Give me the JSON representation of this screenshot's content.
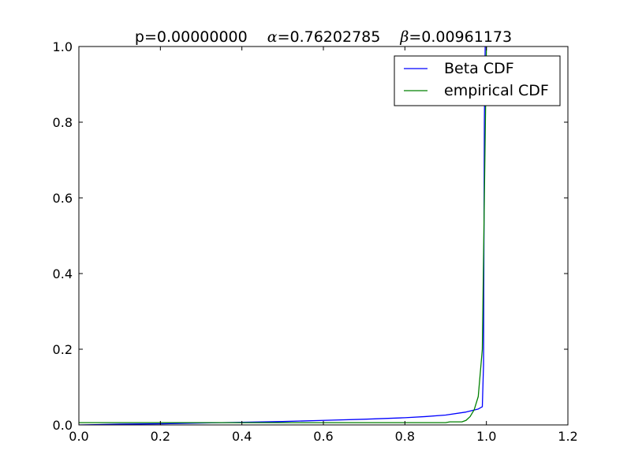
{
  "chart_data": {
    "type": "line",
    "title": {
      "p_label": "p=0.00000000",
      "alpha_symbol": "α",
      "alpha_value": "=0.76202785",
      "beta_symbol": "β",
      "beta_value": "=0.00961173"
    },
    "xlabel": "",
    "ylabel": "",
    "xlim": [
      0.0,
      1.2
    ],
    "ylim": [
      0.0,
      1.0
    ],
    "xticks": [
      0.0,
      0.2,
      0.4,
      0.6,
      0.8,
      1.0,
      1.2
    ],
    "xtick_labels": [
      "0.0",
      "0.2",
      "0.4",
      "0.6",
      "0.8",
      "1.0",
      "1.2"
    ],
    "yticks": [
      0.0,
      0.2,
      0.4,
      0.6,
      0.8,
      1.0
    ],
    "ytick_labels": [
      "0.0",
      "0.2",
      "0.4",
      "0.6",
      "0.8",
      "1.0"
    ],
    "grid": false,
    "legend_placement": "top-right",
    "series": [
      {
        "name": "Beta CDF",
        "color": "#0000ff",
        "points": [
          [
            0.0,
            0.0
          ],
          [
            0.1,
            0.002
          ],
          [
            0.2,
            0.003
          ],
          [
            0.3,
            0.005
          ],
          [
            0.4,
            0.007
          ],
          [
            0.5,
            0.009
          ],
          [
            0.6,
            0.012
          ],
          [
            0.7,
            0.015
          ],
          [
            0.8,
            0.019
          ],
          [
            0.85,
            0.022
          ],
          [
            0.9,
            0.026
          ],
          [
            0.95,
            0.034
          ],
          [
            0.98,
            0.042
          ],
          [
            0.99,
            0.048
          ],
          [
            0.993,
            0.16
          ],
          [
            0.995,
            0.8
          ],
          [
            0.997,
            1.0
          ]
        ]
      },
      {
        "name": "empirical CDF",
        "color": "#008000",
        "points": [
          [
            0.0,
            0.006
          ],
          [
            0.3,
            0.006
          ],
          [
            0.6,
            0.006
          ],
          [
            0.8,
            0.006
          ],
          [
            0.9,
            0.006
          ],
          [
            0.91,
            0.008
          ],
          [
            0.94,
            0.008
          ],
          [
            0.95,
            0.012
          ],
          [
            0.96,
            0.022
          ],
          [
            0.97,
            0.04
          ],
          [
            0.98,
            0.075
          ],
          [
            0.99,
            0.2
          ],
          [
            0.995,
            0.6
          ],
          [
            1.0,
            1.0
          ]
        ]
      }
    ]
  }
}
